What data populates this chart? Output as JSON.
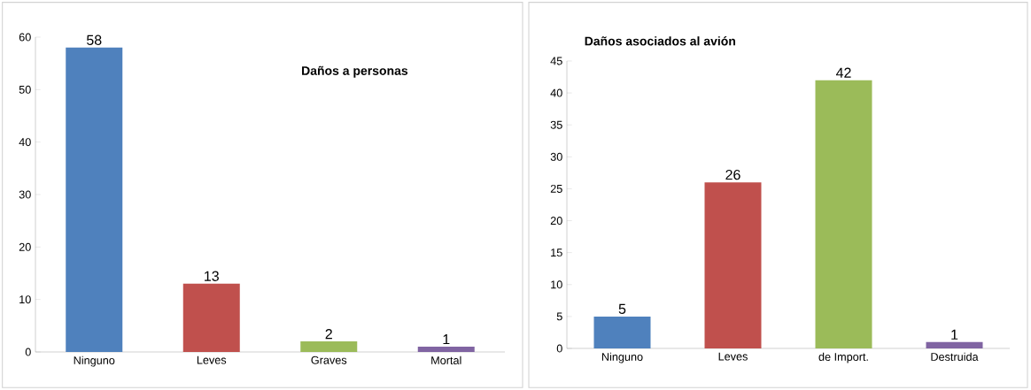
{
  "chart_data": [
    {
      "type": "bar",
      "title": "Daños a personas",
      "categories": [
        "Ninguno",
        "Leves",
        "Graves",
        "Mortal"
      ],
      "values": [
        58,
        13,
        2,
        1
      ],
      "colors": [
        "#4f81bd",
        "#c0504d",
        "#9bbb59",
        "#8064a2"
      ],
      "ylim": [
        0,
        60
      ],
      "yticks": [
        0,
        10,
        20,
        30,
        40,
        50,
        60
      ],
      "data_labels": true
    },
    {
      "type": "bar",
      "title": "Daños asociados al avión",
      "categories": [
        "Ninguno",
        "Leves",
        "de Import.",
        "Destruida"
      ],
      "values": [
        5,
        26,
        42,
        1
      ],
      "colors": [
        "#4f81bd",
        "#c0504d",
        "#9bbb59",
        "#8064a2"
      ],
      "ylim": [
        0,
        45
      ],
      "yticks": [
        0,
        5,
        10,
        15,
        20,
        25,
        30,
        35,
        40,
        45
      ],
      "data_labels": true
    }
  ]
}
